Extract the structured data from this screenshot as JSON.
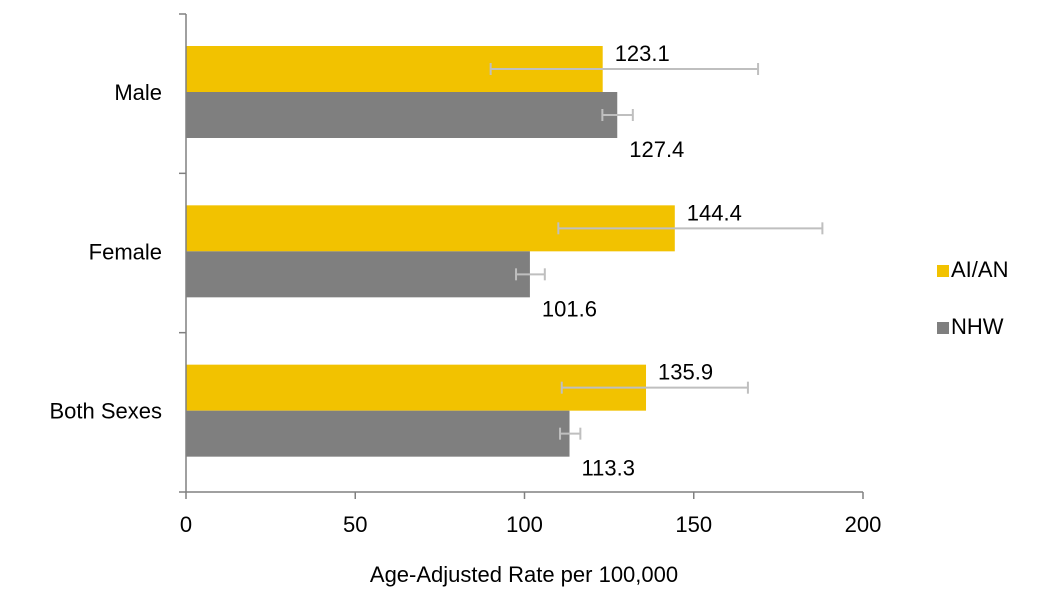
{
  "chart_data": {
    "type": "bar",
    "orientation": "horizontal",
    "categories": [
      "Male",
      "Female",
      "Both Sexes"
    ],
    "series": [
      {
        "name": "AI/AN",
        "color": "#F2C200",
        "values": [
          123.1,
          144.4,
          135.9
        ],
        "error_low": [
          90.0,
          110.0,
          111.0
        ],
        "error_high": [
          169.0,
          188.0,
          166.0
        ]
      },
      {
        "name": "NHW",
        "color": "#7F7F7F",
        "values": [
          127.4,
          101.6,
          113.3
        ],
        "error_low": [
          123.0,
          97.5,
          110.5
        ],
        "error_high": [
          132.0,
          106.0,
          116.5
        ]
      }
    ],
    "xlabel": "Age-Adjusted Rate per 100,000",
    "xlim": [
      0,
      200
    ],
    "xticks": [
      0,
      50,
      100,
      150,
      200
    ],
    "error_bar_color": "#BFBFBF",
    "axis_color": "#808080",
    "legend_position": "right",
    "grid": false
  }
}
